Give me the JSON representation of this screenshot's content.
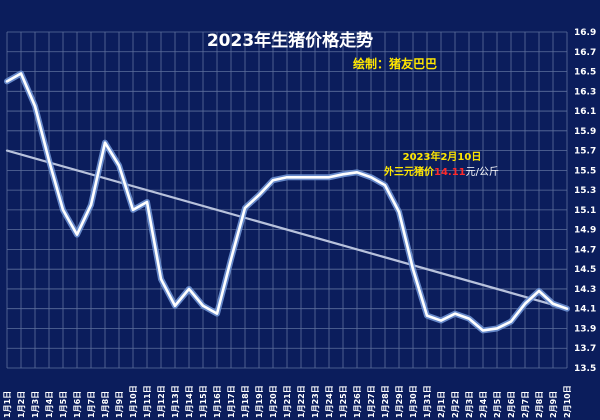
{
  "chart_data": {
    "type": "line",
    "title": "2023年生猪价格走势",
    "subtitle": "绘制：猪友巴巴",
    "annotation": {
      "date": "2023年2月10日",
      "label": "外三元猪价",
      "price": "14.11",
      "unit": "元/公斤"
    },
    "categories": [
      "1月1日",
      "1月2日",
      "1月3日",
      "1月4日",
      "1月5日",
      "1月6日",
      "1月7日",
      "1月8日",
      "1月9日",
      "1月10日",
      "1月11日",
      "1月12日",
      "1月13日",
      "1月14日",
      "1月15日",
      "1月16日",
      "1月17日",
      "1月18日",
      "1月19日",
      "1月20日",
      "1月21日",
      "1月22日",
      "1月23日",
      "1月24日",
      "1月25日",
      "1月26日",
      "1月27日",
      "1月28日",
      "1月29日",
      "1月30日",
      "1月31日",
      "2月1日",
      "2月2日",
      "2月3日",
      "2月4日",
      "2月5日",
      "2月6日",
      "2月7日",
      "2月8日",
      "2月9日",
      "2月10日"
    ],
    "values": [
      16.4,
      16.48,
      16.15,
      15.6,
      15.1,
      14.85,
      15.15,
      15.78,
      15.55,
      15.1,
      15.18,
      14.4,
      14.13,
      14.3,
      14.13,
      14.05,
      14.6,
      15.12,
      15.25,
      15.4,
      15.43,
      15.43,
      15.43,
      15.43,
      15.46,
      15.48,
      15.43,
      15.35,
      15.08,
      14.5,
      14.03,
      13.98,
      14.05,
      14.0,
      13.88,
      13.9,
      13.97,
      14.15,
      14.28,
      14.15,
      14.1
    ],
    "trendline": {
      "start": 15.7,
      "end": 14.1
    },
    "ylim": [
      13.5,
      16.9
    ],
    "yticks": [
      13.5,
      13.7,
      13.9,
      14.1,
      14.3,
      14.5,
      14.7,
      14.9,
      15.1,
      15.3,
      15.5,
      15.7,
      15.9,
      16.1,
      16.3,
      16.5,
      16.7,
      16.9
    ],
    "grid": true,
    "colors": {
      "background": "#0b1d5c",
      "grid": "#5d6f9c",
      "line": "#ffffff",
      "line_glow": "#6f93d4",
      "trend": "#b8c2dc"
    }
  }
}
